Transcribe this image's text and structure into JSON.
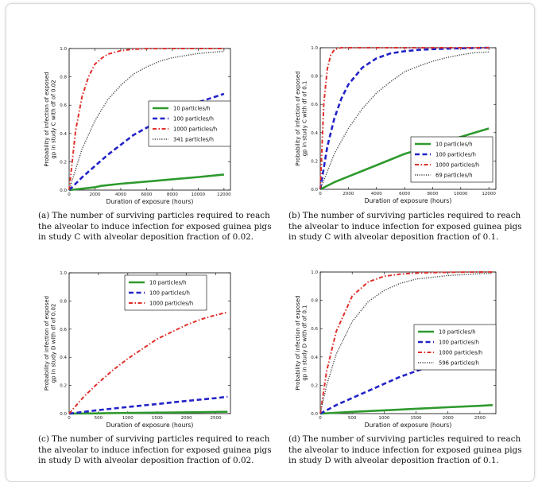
{
  "colors": {
    "series_1": "#2e9a2e",
    "series_2": "#2323c8",
    "series_3": "#e0302b",
    "series_4": "#444444"
  },
  "chart_data": [
    {
      "type": "line",
      "ylabel_lines": [
        "Probability of infection of exposed",
        "gp in study C with df of 0.02"
      ],
      "xlabel": "Duration of exposure (hours)",
      "xlim": [
        0,
        12500
      ],
      "ylim": [
        0,
        1.0
      ],
      "xticks": [
        0,
        2000,
        4000,
        6000,
        8000,
        10000,
        12000
      ],
      "yticks": [
        0.0,
        0.2,
        0.4,
        0.6,
        0.8,
        1.0
      ],
      "legend_loc": "center-right",
      "series": [
        {
          "name": "10 particles/h",
          "style": "solid",
          "color_key": "series_1",
          "x": [
            0,
            2000,
            2500,
            4000,
            6000,
            8000,
            10000,
            12000
          ],
          "y": [
            0,
            0.02,
            0.03,
            0.045,
            0.06,
            0.076,
            0.092,
            0.11
          ]
        },
        {
          "name": "100 particles/h",
          "style": "dashed",
          "color_key": "series_2",
          "x": [
            0,
            1000,
            2000,
            3000,
            4000,
            5000,
            6000,
            7000,
            8000,
            9000,
            10000,
            11000,
            12000
          ],
          "y": [
            0,
            0.09,
            0.17,
            0.25,
            0.32,
            0.39,
            0.44,
            0.49,
            0.54,
            0.58,
            0.62,
            0.65,
            0.68
          ]
        },
        {
          "name": "1000 particles/h",
          "style": "dashdot",
          "color_key": "series_3",
          "x": [
            0,
            500,
            1000,
            1500,
            2000,
            2500,
            3000,
            4000,
            5000,
            6000,
            8000,
            10000,
            12000
          ],
          "y": [
            0,
            0.42,
            0.66,
            0.8,
            0.89,
            0.93,
            0.96,
            0.985,
            0.995,
            0.999,
            1.0,
            1.0,
            1.0
          ]
        },
        {
          "name": "341 particles/h",
          "style": "dotted",
          "color_key": "series_4",
          "x": [
            0,
            1000,
            2000,
            3000,
            4000,
            5000,
            6000,
            7000,
            8000,
            9000,
            10000,
            11000,
            12000
          ],
          "y": [
            0,
            0.29,
            0.49,
            0.64,
            0.74,
            0.82,
            0.87,
            0.91,
            0.935,
            0.95,
            0.965,
            0.973,
            0.98
          ]
        }
      ]
    },
    {
      "type": "line",
      "ylabel_lines": [
        "Probability of infection of exposed",
        "gp in study C with df of 0.1"
      ],
      "xlabel": "Duration of exposure (hours)",
      "xlim": [
        0,
        12500
      ],
      "ylim": [
        0,
        1.0
      ],
      "xticks": [
        0,
        2000,
        4000,
        6000,
        8000,
        10000,
        12000
      ],
      "yticks": [
        0.0,
        0.2,
        0.4,
        0.6,
        0.8,
        1.0
      ],
      "legend_loc": "lower-right",
      "series": [
        {
          "name": "10 particles/h",
          "style": "solid",
          "color_key": "series_1",
          "x": [
            0,
            1000,
            2000,
            3000,
            4000,
            5000,
            6000,
            7000,
            8000,
            9000,
            10000,
            11000,
            12000
          ],
          "y": [
            0,
            0.05,
            0.09,
            0.13,
            0.17,
            0.21,
            0.25,
            0.28,
            0.31,
            0.34,
            0.37,
            0.4,
            0.43
          ]
        },
        {
          "name": "100 particles/h",
          "style": "dashed",
          "color_key": "series_2",
          "x": [
            0,
            500,
            1000,
            1500,
            2000,
            3000,
            4000,
            5000,
            6000,
            7000,
            8000,
            9000,
            10000,
            12000
          ],
          "y": [
            0,
            0.3,
            0.5,
            0.64,
            0.74,
            0.86,
            0.925,
            0.96,
            0.975,
            0.985,
            0.99,
            0.993,
            0.996,
            1.0
          ]
        },
        {
          "name": "1000 particles/h",
          "style": "dashdot",
          "color_key": "series_3",
          "x": [
            0,
            250,
            500,
            750,
            1000,
            1250,
            1500,
            2000,
            3000,
            12000
          ],
          "y": [
            0,
            0.6,
            0.85,
            0.95,
            0.985,
            0.995,
            1.0,
            1.0,
            1.0,
            1.0
          ]
        },
        {
          "name": "69 particles/h",
          "style": "dotted",
          "color_key": "series_4",
          "x": [
            0,
            1000,
            2000,
            3000,
            4000,
            5000,
            6000,
            7000,
            8000,
            9000,
            10000,
            11000,
            12000
          ],
          "y": [
            0,
            0.25,
            0.43,
            0.57,
            0.68,
            0.76,
            0.83,
            0.87,
            0.905,
            0.93,
            0.95,
            0.965,
            0.97
          ]
        }
      ]
    },
    {
      "type": "line",
      "ylabel_lines": [
        "Probability of infection of exposed",
        "gp in study D with df of 0.02"
      ],
      "xlabel": "Duration of exposure (hours)",
      "xlim": [
        0,
        2750
      ],
      "ylim": [
        0,
        1.0
      ],
      "xticks": [
        0,
        500,
        1000,
        1500,
        2000,
        2500
      ],
      "yticks": [
        0.0,
        0.2,
        0.4,
        0.6,
        0.8,
        1.0
      ],
      "legend_loc": "upper-center",
      "series": [
        {
          "name": "10 particles/h",
          "style": "solid",
          "color_key": "series_1",
          "x": [
            0,
            500,
            1000,
            1500,
            2000,
            2500,
            2700
          ],
          "y": [
            0,
            0.002,
            0.005,
            0.007,
            0.009,
            0.012,
            0.013
          ]
        },
        {
          "name": "100 particles/h",
          "style": "dashed",
          "color_key": "series_2",
          "x": [
            0,
            500,
            1000,
            1500,
            2000,
            2500,
            2700
          ],
          "y": [
            0,
            0.025,
            0.047,
            0.068,
            0.09,
            0.11,
            0.12
          ]
        },
        {
          "name": "1000 particles/h",
          "style": "dashdot",
          "color_key": "series_3",
          "x": [
            0,
            250,
            500,
            750,
            1000,
            1250,
            1500,
            1750,
            2000,
            2250,
            2500,
            2700
          ],
          "y": [
            0,
            0.12,
            0.22,
            0.31,
            0.39,
            0.46,
            0.53,
            0.58,
            0.63,
            0.67,
            0.7,
            0.72
          ]
        }
      ]
    },
    {
      "type": "line",
      "ylabel_lines": [
        "Probability of infection of exposed",
        "gp in study D with df of 0.1"
      ],
      "xlabel": "Duration of exposure (hours)",
      "xlim": [
        0,
        2750
      ],
      "ylim": [
        0,
        1.0
      ],
      "xticks": [
        0,
        500,
        1000,
        1500,
        2000,
        2500
      ],
      "yticks": [
        0.0,
        0.2,
        0.4,
        0.6,
        0.8,
        1.0
      ],
      "legend_loc": "center-right",
      "series": [
        {
          "name": "10 particles/h",
          "style": "solid",
          "color_key": "series_1",
          "x": [
            0,
            500,
            1000,
            1500,
            2000,
            2500,
            2700
          ],
          "y": [
            0,
            0.012,
            0.023,
            0.034,
            0.045,
            0.055,
            0.06
          ]
        },
        {
          "name": "100 particles/h",
          "style": "dashed",
          "color_key": "series_2",
          "x": [
            0,
            250,
            500,
            750,
            1000,
            1250,
            1500,
            1750,
            2000,
            2250,
            2500,
            2700
          ],
          "y": [
            0,
            0.06,
            0.11,
            0.16,
            0.21,
            0.26,
            0.3,
            0.34,
            0.38,
            0.42,
            0.45,
            0.48
          ]
        },
        {
          "name": "1000 particles/h",
          "style": "dashdot",
          "color_key": "series_3",
          "x": [
            0,
            100,
            250,
            500,
            750,
            1000,
            1250,
            1500,
            2000,
            2500,
            2700
          ],
          "y": [
            0,
            0.3,
            0.58,
            0.83,
            0.93,
            0.97,
            0.985,
            0.993,
            0.998,
            1.0,
            1.0
          ]
        },
        {
          "name": "596 particles/h",
          "style": "dotted",
          "color_key": "series_4",
          "x": [
            0,
            100,
            250,
            500,
            750,
            1000,
            1250,
            1500,
            2000,
            2500,
            2700
          ],
          "y": [
            0,
            0.2,
            0.42,
            0.65,
            0.79,
            0.87,
            0.92,
            0.95,
            0.975,
            0.988,
            0.99
          ]
        }
      ]
    }
  ],
  "captions": [
    {
      "label": "(a)",
      "text": "The number of surviving particles required to reach the alveolar to induce infection for exposed guinea pigs in study C with alveolar deposition fraction of 0.02."
    },
    {
      "label": "(b)",
      "text": "The number of surviving particles required to reach the alveolar to induce infection for exposed guinea pigs in study C with alveolar deposition fraction of 0.1."
    },
    {
      "label": "(c)",
      "text": "The number of surviving particles required to reach the alveolar to induce infection for exposed guinea pigs in study D with alveolar deposition fraction of 0.02."
    },
    {
      "label": "(d)",
      "text": "The number of surviving particles required to reach the alveolar to induce infection for exposed guinea pigs in study D with alveolar deposition fraction of 0.1."
    }
  ]
}
